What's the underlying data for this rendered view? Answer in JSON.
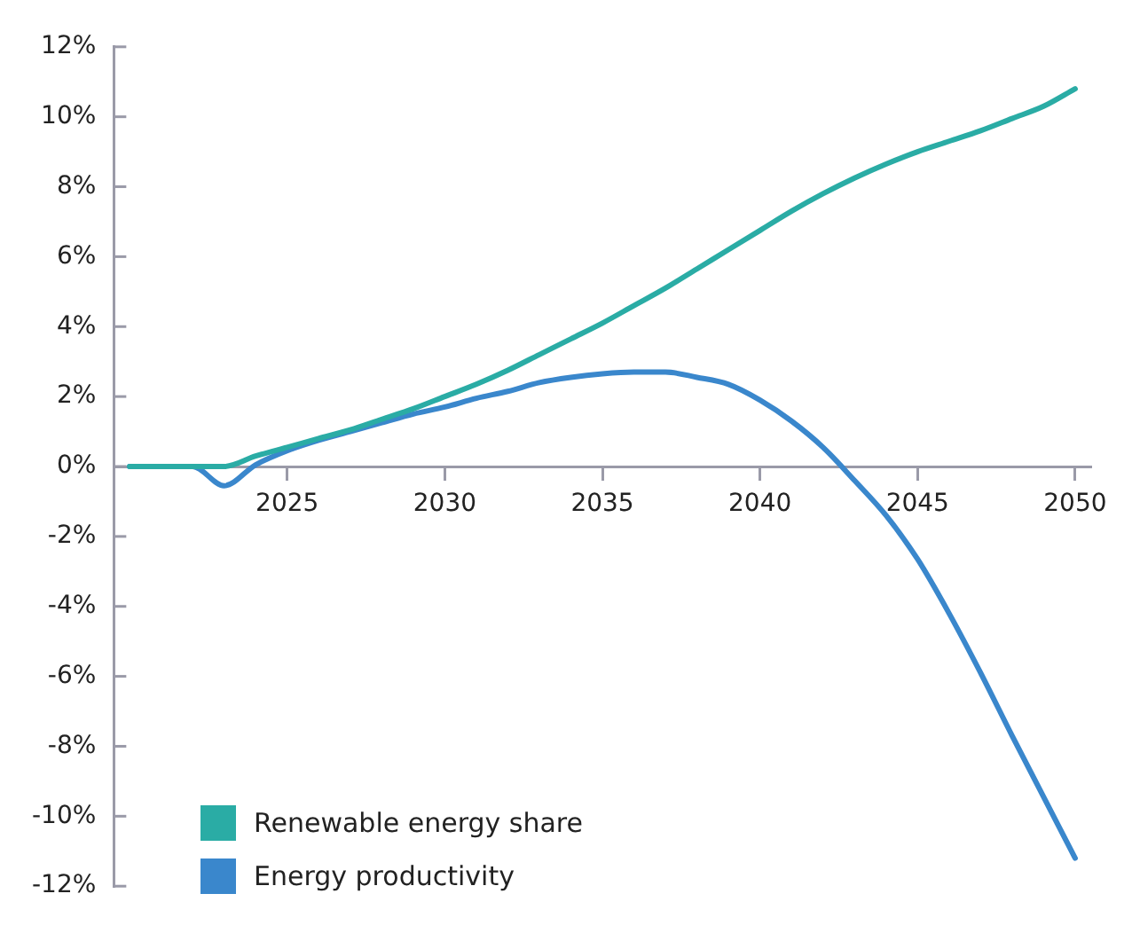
{
  "chart_data": {
    "type": "line",
    "x": [
      2020,
      2021,
      2022,
      2023,
      2024,
      2025,
      2026,
      2027,
      2028,
      2029,
      2030,
      2031,
      2032,
      2033,
      2034,
      2035,
      2036,
      2037,
      2038,
      2039,
      2040,
      2041,
      2042,
      2043,
      2044,
      2045,
      2046,
      2047,
      2048,
      2049,
      2050
    ],
    "series": [
      {
        "name": "Renewable energy share",
        "color": "#2aaca5",
        "values": [
          0,
          0,
          0,
          0,
          0.3,
          0.55,
          0.8,
          1.05,
          1.35,
          1.65,
          2.0,
          2.35,
          2.75,
          3.2,
          3.65,
          4.1,
          4.6,
          5.1,
          5.65,
          6.2,
          6.75,
          7.3,
          7.8,
          8.25,
          8.65,
          9.0,
          9.3,
          9.6,
          9.95,
          10.3,
          10.8
        ]
      },
      {
        "name": "Energy productivity",
        "color": "#3a87cc",
        "values": [
          0,
          0,
          0,
          -0.55,
          0.05,
          0.45,
          0.75,
          1.0,
          1.25,
          1.5,
          1.7,
          1.95,
          2.15,
          2.4,
          2.55,
          2.65,
          2.7,
          2.7,
          2.55,
          2.35,
          1.9,
          1.3,
          0.55,
          -0.4,
          -1.4,
          -2.65,
          -4.2,
          -5.9,
          -7.7,
          -9.45,
          -11.2
        ]
      }
    ],
    "xlim": [
      2019.5,
      2050.5
    ],
    "xticks": [
      2025,
      2030,
      2035,
      2040,
      2045,
      2050
    ],
    "ylim": [
      -12,
      12
    ],
    "yticks": [
      {
        "value": -12,
        "label": "-12%"
      },
      {
        "value": -10,
        "label": "-10%"
      },
      {
        "value": -8,
        "label": "-8%"
      },
      {
        "value": -6,
        "label": "-6%"
      },
      {
        "value": -4,
        "label": "-4%"
      },
      {
        "value": -2,
        "label": "-2%"
      },
      {
        "value": 0,
        "label": "0%"
      },
      {
        "value": 2,
        "label": "2%"
      },
      {
        "value": 4,
        "label": "4%"
      },
      {
        "value": 6,
        "label": "6%"
      },
      {
        "value": 8,
        "label": "8%"
      },
      {
        "value": 10,
        "label": "10%"
      },
      {
        "value": 12,
        "label": "12%"
      }
    ],
    "grid": false,
    "legend": "bottom left",
    "marker": "none",
    "line_style": "solid"
  }
}
